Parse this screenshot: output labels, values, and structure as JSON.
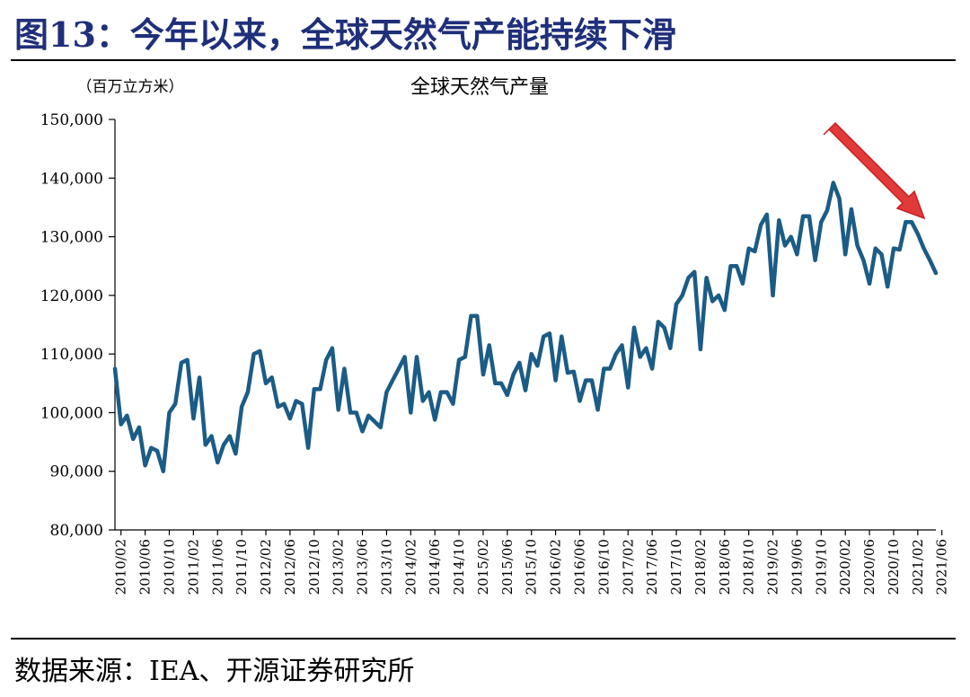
{
  "figure": {
    "title": "图13：今年以来，全球天然气产能持续下滑",
    "source": "数据来源：IEA、开源证券研究所"
  },
  "colors": {
    "title": "#1f2f7a",
    "line": "#1b5c86",
    "arrow": "#e23a3a"
  },
  "chart_data": {
    "type": "line",
    "title": "全球天然气产量",
    "unit": "（百万立方米）",
    "ylim": [
      80000,
      150000
    ],
    "y_ticks": [
      "80,000",
      "90,000",
      "100,000",
      "110,000",
      "120,000",
      "130,000",
      "140,000",
      "150,000"
    ],
    "x_tick_labels": [
      "2010/02",
      "2010/06",
      "2010/10",
      "2011/02",
      "2011/06",
      "2011/10",
      "2012/02",
      "2012/06",
      "2012/10",
      "2013/02",
      "2013/06",
      "2013/10",
      "2014/02",
      "2014/06",
      "2014/10",
      "2015/02",
      "2015/06",
      "2015/10",
      "2016/02",
      "2016/06",
      "2016/10",
      "2017/02",
      "2017/06",
      "2017/10",
      "2018/02",
      "2018/06",
      "2018/10",
      "2019/02",
      "2019/06",
      "2019/10",
      "2020/02",
      "2020/06",
      "2020/10",
      "2021/02",
      "2021/06"
    ],
    "grid": false,
    "annotation": "red arrow pointing down toward the 2021 decline",
    "series": [
      {
        "x_start": "2010/01",
        "values": [
          107500,
          98000,
          99500,
          95500,
          97500,
          91000,
          94000,
          93500,
          90000,
          100000,
          101500,
          108500,
          109000,
          99000,
          106000,
          94500,
          96000,
          91500,
          94500,
          96000,
          93000,
          101000,
          103500,
          110000,
          110500,
          105000,
          106000,
          101000,
          101500,
          99000,
          102000,
          101500,
          94000,
          104000,
          104000,
          109000,
          111000,
          100500,
          107500,
          100000,
          100000,
          96800,
          99500,
          98500,
          97500,
          103500,
          105500,
          107500,
          109500,
          100000,
          109500,
          102000,
          103500,
          98800,
          103500,
          103500,
          101500,
          109000,
          109500,
          116500,
          116500,
          106500,
          111500,
          105000,
          105000,
          103000,
          106500,
          108500,
          103800,
          110000,
          108000,
          113000,
          113500,
          105500,
          113000,
          106800,
          107000,
          102000,
          105500,
          105500,
          100500,
          107500,
          107500,
          110000,
          111500,
          104300,
          114500,
          109500,
          111000,
          107500,
          115500,
          114500,
          111000,
          118500,
          120000,
          123000,
          124000,
          110800,
          123000,
          119000,
          120000,
          117500,
          125000,
          125000,
          122000,
          128000,
          127500,
          132000,
          133800,
          120000,
          132800,
          128500,
          130000,
          127000,
          133500,
          133500,
          126000,
          132500,
          134500,
          139200,
          136500,
          127000,
          134700,
          128500,
          126000,
          122000,
          128000,
          127000,
          121500,
          128000,
          127800,
          132500,
          132500,
          130500,
          128000,
          126000,
          123800
        ]
      }
    ]
  }
}
